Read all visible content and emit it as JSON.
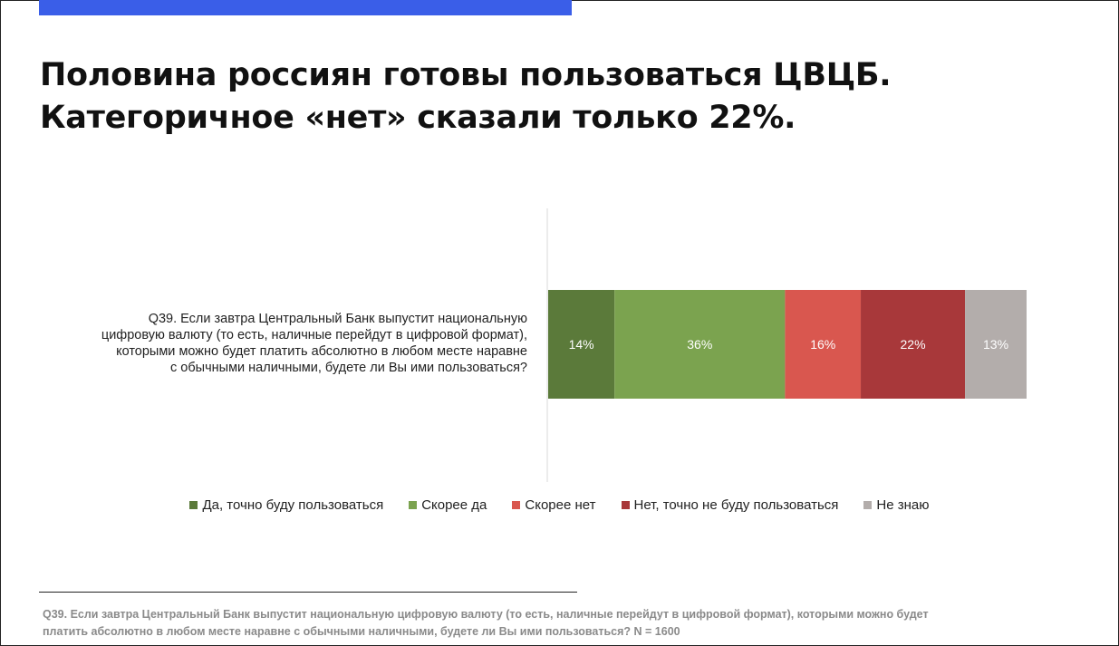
{
  "title": {
    "line1": "Половина россиян готовы пользоваться ЦВЦБ.",
    "line2": "Категоричное «нет» сказали только 22%."
  },
  "question": {
    "lines": [
      "Q39. Если завтра Центральный Банк выпустит национальную",
      "цифровую валюту (то есть, наличные перейдут в цифровой формат),",
      "которыми можно будет платить абсолютно в любом месте наравне",
      "с обычными наличными, будете ли Вы ими пользоваться?"
    ]
  },
  "footnote": {
    "lines": [
      "Q39. Если завтра Центральный Банк выпустит национальную цифровую валюту (то есть, наличные перейдут в цифровой формат), которыми можно будет",
      "платить абсолютно в любом месте наравне с обычными наличными, будете ли Вы ими пользоваться? N = 1600"
    ]
  },
  "colors": {
    "accent": "#3a5ee8"
  },
  "chart_data": {
    "type": "bar",
    "orientation": "horizontal",
    "stacked": true,
    "categories": [
      "Q39. Если завтра Центральный Банк выпустит национальную цифровую валюту (то есть, наличные перейдут в цифровой формат), которыми можно будет платить абсолютно в любом месте наравне с обычными наличными, будете ли Вы ими пользоваться?"
    ],
    "series": [
      {
        "name": "Да, точно буду пользоваться",
        "values": [
          14
        ],
        "label": "14%",
        "color": "#5b7a3a"
      },
      {
        "name": "Скорее да",
        "values": [
          36
        ],
        "label": "36%",
        "color": "#7ba34f"
      },
      {
        "name": "Скорее нет",
        "values": [
          16
        ],
        "label": "16%",
        "color": "#d9574f"
      },
      {
        "name": "Нет, точно не буду пользоваться",
        "values": [
          22
        ],
        "label": "22%",
        "color": "#a8383a"
      },
      {
        "name": "Не знаю",
        "values": [
          13
        ],
        "label": "13%",
        "color": "#b3adab"
      }
    ],
    "grid": false,
    "legend_position": "bottom"
  }
}
